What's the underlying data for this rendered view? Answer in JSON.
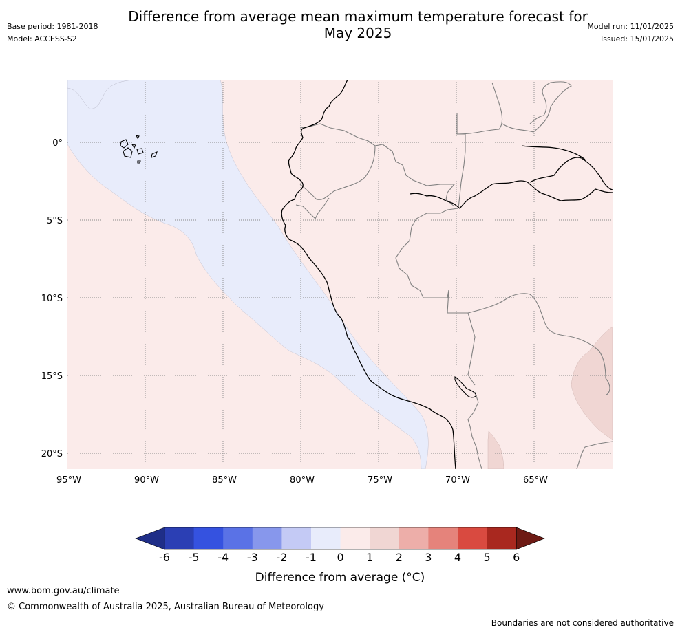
{
  "header": {
    "title_line1": "Difference from average mean maximum temperature forecast for",
    "title_line2": "May 2025",
    "base_period": "Base period: 1981-2018",
    "model": "Model: ACCESS-S2",
    "model_run": "Model run: 11/01/2025",
    "issued": "Issued: 15/01/2025"
  },
  "map": {
    "lon_labels": [
      "95°W",
      "90°W",
      "85°W",
      "80°W",
      "75°W",
      "70°W",
      "65°W"
    ],
    "lat_labels": [
      "0°",
      "5°S",
      "10°S",
      "15°S",
      "20°S"
    ],
    "colors": {
      "ocean_cool": "#e8ecfb",
      "warm": "#fbebea",
      "warmer": "#f0d6d3",
      "coast": "#000000",
      "border": "#808080",
      "grid": "#888888"
    }
  },
  "colorbar": {
    "ticks": [
      "-6",
      "-5",
      "-4",
      "-3",
      "-2",
      "-1",
      "0",
      "1",
      "2",
      "3",
      "4",
      "5",
      "6"
    ],
    "colors": [
      "#1f2e88",
      "#2b3fb4",
      "#3552e0",
      "#5a72e6",
      "#8797ec",
      "#c4caf5",
      "#e8ecfb",
      "#fbebea",
      "#f0d6d3",
      "#edaea9",
      "#e5837b",
      "#d94a40",
      "#a9281f",
      "#6e1a14"
    ],
    "title": "Difference from average (°C)"
  },
  "footer": {
    "url": "www.bom.gov.au/climate",
    "copyright": "© Commonwealth of Australia 2025, Australian Bureau of Meteorology",
    "note": "Boundaries are not considered authoritative"
  }
}
